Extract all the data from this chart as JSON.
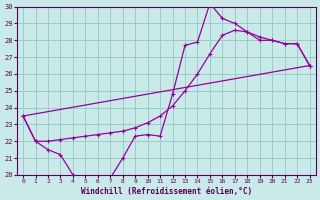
{
  "xlabel": "Windchill (Refroidissement éolien,°C)",
  "bg_color": "#caeaea",
  "grid_color": "#99cccc",
  "line_color": "#990099",
  "xlim": [
    -0.5,
    23.5
  ],
  "ylim": [
    20,
    30
  ],
  "xticks": [
    0,
    1,
    2,
    3,
    4,
    5,
    6,
    7,
    8,
    9,
    10,
    11,
    12,
    13,
    14,
    15,
    16,
    17,
    18,
    19,
    20,
    21,
    22,
    23
  ],
  "yticks": [
    20,
    21,
    22,
    23,
    24,
    25,
    26,
    27,
    28,
    29,
    30
  ],
  "line1_x": [
    0,
    1,
    2,
    3,
    4,
    5,
    6,
    7,
    8,
    9,
    10,
    11,
    12,
    13,
    14,
    15,
    16,
    17,
    18,
    19,
    20,
    21,
    22,
    23
  ],
  "line1_y": [
    23.5,
    22.0,
    21.5,
    21.2,
    20.0,
    19.8,
    19.8,
    19.8,
    21.0,
    22.3,
    22.4,
    22.3,
    24.8,
    27.7,
    27.9,
    30.2,
    29.3,
    29.0,
    28.5,
    28.0,
    28.0,
    27.8,
    27.8,
    26.5
  ],
  "line2_x": [
    0,
    1,
    2,
    3,
    4,
    5,
    6,
    7,
    8,
    9,
    10,
    11,
    12,
    13,
    14,
    15,
    16,
    17,
    18,
    19,
    20,
    21,
    22,
    23
  ],
  "line2_y": [
    23.5,
    22.0,
    22.0,
    22.1,
    22.2,
    22.3,
    22.4,
    22.5,
    22.6,
    22.8,
    23.1,
    23.5,
    24.1,
    25.0,
    26.0,
    27.2,
    28.3,
    28.6,
    28.5,
    28.2,
    28.0,
    27.8,
    27.8,
    26.5
  ],
  "line3_x": [
    0,
    23
  ],
  "line3_y": [
    23.5,
    26.5
  ]
}
